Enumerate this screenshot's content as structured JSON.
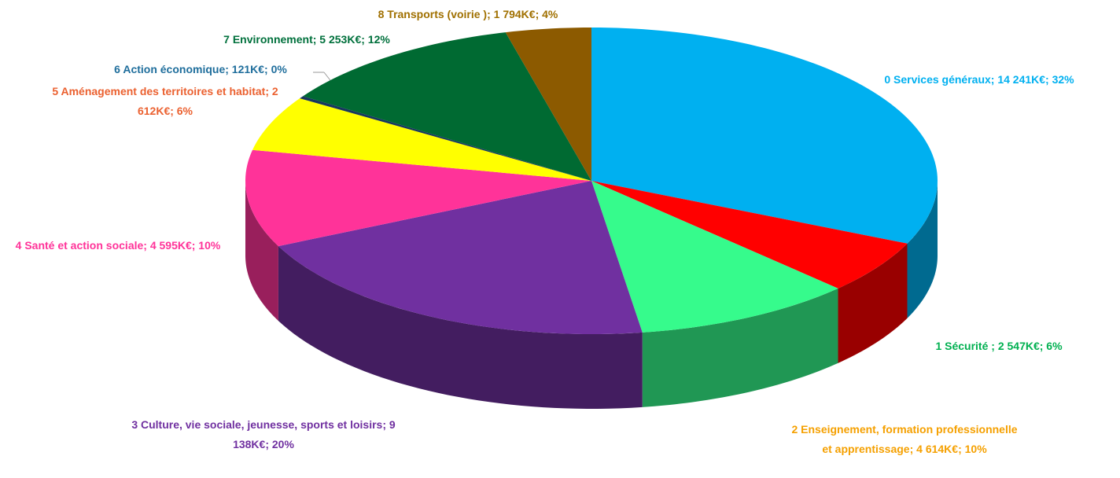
{
  "chart_data": {
    "type": "pie3d",
    "categories": [
      "0 Services généraux",
      "1 Sécurité",
      "2 Enseignement, formation professionnelle et apprentissage",
      "3 Culture, vie sociale, jeunesse, sports et loisirs",
      "4 Santé et action sociale",
      "5 Aménagement des territoires et habitat",
      "6 Action économique",
      "7 Environnement",
      "8 Transports (voirie )"
    ],
    "values": [
      14241,
      2547,
      4614,
      9138,
      4595,
      2612,
      121,
      5253,
      1794
    ],
    "labels": [
      "0 Services généraux; 14 241K€; 32%",
      "1 Sécurité ; 2 547K€; 6%",
      "2 Enseignement, formation professionnelle et apprentissage; 4 614K€; 10%",
      "3 Culture, vie sociale, jeunesse, sports et loisirs; 9 138K€; 20%",
      "4 Santé et action sociale; 4 595K€; 10%",
      "5 Aménagement des territoires et habitat; 2 612K€; 6%",
      "6 Action économique;  121K€; 0%",
      "7 Environnement; 5 253K€; 12%",
      "8 Transports  (voirie ); 1 794K€; 4%"
    ],
    "colors": [
      "#00b0f0",
      "#ff0000",
      "#36fb8c",
      "#7030a0",
      "#ff3399",
      "#ffff00",
      "#17375e",
      "#006a32",
      "#8c5a00"
    ],
    "label_colors": [
      "#00b0f0",
      "#00b050",
      "#f5a000",
      "#7030a0",
      "#ff3399",
      "#eb6130",
      "#1f6e9c",
      "#00703c",
      "#a07000"
    ]
  }
}
